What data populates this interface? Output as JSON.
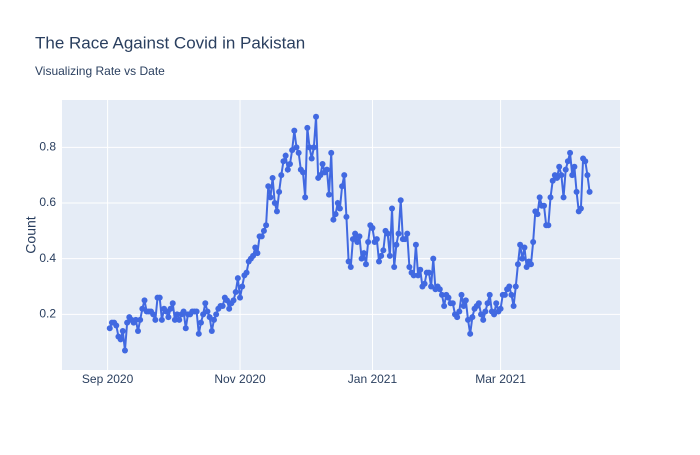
{
  "chart_data": {
    "type": "line",
    "title": "The Race Against Covid in Pakistan",
    "subtitle": "Visualizing Rate vs Date",
    "ylabel": "Count",
    "xlim": [
      "2020-08-11",
      "2021-04-25"
    ],
    "ylim": [
      0,
      0.97
    ],
    "xticks": [
      {
        "value": "2020-09-01",
        "label": "Sep 2020"
      },
      {
        "value": "2020-11-01",
        "label": "Nov 2020"
      },
      {
        "value": "2021-01-01",
        "label": "Jan 2021"
      },
      {
        "value": "2021-03-01",
        "label": "Mar 2021"
      }
    ],
    "yticks": [
      0.2,
      0.4,
      0.6,
      0.8
    ],
    "grid": true,
    "x": [
      "2020-09-02",
      "2020-09-03",
      "2020-09-04",
      "2020-09-05",
      "2020-09-06",
      "2020-09-07",
      "2020-09-08",
      "2020-09-09",
      "2020-09-10",
      "2020-09-11",
      "2020-09-12",
      "2020-09-13",
      "2020-09-14",
      "2020-09-15",
      "2020-09-16",
      "2020-09-17",
      "2020-09-18",
      "2020-09-19",
      "2020-09-20",
      "2020-09-21",
      "2020-09-22",
      "2020-09-23",
      "2020-09-24",
      "2020-09-25",
      "2020-09-26",
      "2020-09-27",
      "2020-09-28",
      "2020-09-29",
      "2020-09-30",
      "2020-10-01",
      "2020-10-02",
      "2020-10-03",
      "2020-10-04",
      "2020-10-05",
      "2020-10-06",
      "2020-10-07",
      "2020-10-08",
      "2020-10-09",
      "2020-10-10",
      "2020-10-11",
      "2020-10-12",
      "2020-10-13",
      "2020-10-14",
      "2020-10-15",
      "2020-10-16",
      "2020-10-17",
      "2020-10-18",
      "2020-10-19",
      "2020-10-20",
      "2020-10-21",
      "2020-10-22",
      "2020-10-23",
      "2020-10-24",
      "2020-10-25",
      "2020-10-26",
      "2020-10-27",
      "2020-10-28",
      "2020-10-29",
      "2020-10-30",
      "2020-10-31",
      "2020-11-01",
      "2020-11-02",
      "2020-11-03",
      "2020-11-04",
      "2020-11-05",
      "2020-11-06",
      "2020-11-07",
      "2020-11-08",
      "2020-11-09",
      "2020-11-10",
      "2020-11-11",
      "2020-11-12",
      "2020-11-13",
      "2020-11-14",
      "2020-11-15",
      "2020-11-16",
      "2020-11-17",
      "2020-11-18",
      "2020-11-19",
      "2020-11-20",
      "2020-11-21",
      "2020-11-22",
      "2020-11-23",
      "2020-11-24",
      "2020-11-25",
      "2020-11-26",
      "2020-11-27",
      "2020-11-28",
      "2020-11-29",
      "2020-11-30",
      "2020-12-01",
      "2020-12-02",
      "2020-12-03",
      "2020-12-04",
      "2020-12-05",
      "2020-12-06",
      "2020-12-07",
      "2020-12-08",
      "2020-12-09",
      "2020-12-10",
      "2020-12-11",
      "2020-12-12",
      "2020-12-13",
      "2020-12-14",
      "2020-12-15",
      "2020-12-16",
      "2020-12-17",
      "2020-12-18",
      "2020-12-19",
      "2020-12-20",
      "2020-12-21",
      "2020-12-22",
      "2020-12-23",
      "2020-12-24",
      "2020-12-25",
      "2020-12-26",
      "2020-12-27",
      "2020-12-28",
      "2020-12-29",
      "2020-12-30",
      "2020-12-31",
      "2021-01-01",
      "2021-01-02",
      "2021-01-03",
      "2021-01-04",
      "2021-01-05",
      "2021-01-06",
      "2021-01-07",
      "2021-01-08",
      "2021-01-09",
      "2021-01-10",
      "2021-01-11",
      "2021-01-12",
      "2021-01-13",
      "2021-01-14",
      "2021-01-15",
      "2021-01-16",
      "2021-01-17",
      "2021-01-18",
      "2021-01-19",
      "2021-01-20",
      "2021-01-21",
      "2021-01-22",
      "2021-01-23",
      "2021-01-24",
      "2021-01-25",
      "2021-01-26",
      "2021-01-27",
      "2021-01-28",
      "2021-01-29",
      "2021-01-30",
      "2021-01-31",
      "2021-02-01",
      "2021-02-02",
      "2021-02-03",
      "2021-02-04",
      "2021-02-05",
      "2021-02-06",
      "2021-02-07",
      "2021-02-08",
      "2021-02-09",
      "2021-02-10",
      "2021-02-11",
      "2021-02-12",
      "2021-02-13",
      "2021-02-14",
      "2021-02-15",
      "2021-02-16",
      "2021-02-17",
      "2021-02-18",
      "2021-02-19",
      "2021-02-20",
      "2021-02-21",
      "2021-02-22",
      "2021-02-23",
      "2021-02-24",
      "2021-02-25",
      "2021-02-26",
      "2021-02-27",
      "2021-02-28",
      "2021-03-01",
      "2021-03-02",
      "2021-03-03",
      "2021-03-04",
      "2021-03-05",
      "2021-03-06",
      "2021-03-07",
      "2021-03-08",
      "2021-03-09",
      "2021-03-10",
      "2021-03-11",
      "2021-03-12",
      "2021-03-13",
      "2021-03-14",
      "2021-03-15",
      "2021-03-16",
      "2021-03-17",
      "2021-03-18",
      "2021-03-19",
      "2021-03-20",
      "2021-03-21",
      "2021-03-22",
      "2021-03-23",
      "2021-03-24",
      "2021-03-25",
      "2021-03-26",
      "2021-03-27",
      "2021-03-28",
      "2021-03-29",
      "2021-03-30",
      "2021-03-31",
      "2021-04-01",
      "2021-04-02",
      "2021-04-03",
      "2021-04-04",
      "2021-04-05",
      "2021-04-06",
      "2021-04-07",
      "2021-04-08",
      "2021-04-09",
      "2021-04-10",
      "2021-04-11"
    ],
    "series": [
      {
        "color": "#4169e1",
        "values": [
          0.15,
          0.17,
          0.17,
          0.16,
          0.12,
          0.11,
          0.14,
          0.07,
          0.17,
          0.19,
          0.18,
          0.17,
          0.18,
          0.14,
          0.18,
          0.22,
          0.25,
          0.21,
          0.21,
          0.21,
          0.2,
          0.18,
          0.26,
          0.26,
          0.18,
          0.22,
          0.21,
          0.19,
          0.22,
          0.24,
          0.18,
          0.2,
          0.18,
          0.2,
          0.21,
          0.15,
          0.2,
          0.2,
          0.21,
          0.21,
          0.21,
          0.13,
          0.17,
          0.2,
          0.24,
          0.21,
          0.19,
          0.14,
          0.18,
          0.2,
          0.22,
          0.23,
          0.23,
          0.26,
          0.25,
          0.22,
          0.24,
          0.25,
          0.28,
          0.33,
          0.26,
          0.3,
          0.34,
          0.35,
          0.39,
          0.4,
          0.41,
          0.44,
          0.42,
          0.48,
          0.48,
          0.5,
          0.52,
          0.66,
          0.62,
          0.69,
          0.6,
          0.57,
          0.64,
          0.7,
          0.75,
          0.77,
          0.72,
          0.74,
          0.79,
          0.86,
          0.8,
          0.78,
          0.72,
          0.71,
          0.62,
          0.87,
          0.8,
          0.76,
          0.8,
          0.91,
          0.69,
          0.7,
          0.74,
          0.71,
          0.72,
          0.63,
          0.78,
          0.54,
          0.56,
          0.6,
          0.58,
          0.66,
          0.7,
          0.55,
          0.39,
          0.37,
          0.47,
          0.49,
          0.46,
          0.48,
          0.4,
          0.42,
          0.38,
          0.46,
          0.52,
          0.51,
          0.46,
          0.47,
          0.39,
          0.41,
          0.43,
          0.5,
          0.49,
          0.41,
          0.58,
          0.37,
          0.45,
          0.49,
          0.61,
          0.47,
          0.47,
          0.49,
          0.37,
          0.35,
          0.34,
          0.45,
          0.34,
          0.36,
          0.3,
          0.31,
          0.35,
          0.35,
          0.3,
          0.4,
          0.29,
          0.3,
          0.29,
          0.27,
          0.23,
          0.27,
          0.26,
          0.24,
          0.24,
          0.2,
          0.19,
          0.21,
          0.27,
          0.23,
          0.25,
          0.18,
          0.13,
          0.19,
          0.22,
          0.23,
          0.24,
          0.2,
          0.18,
          0.21,
          0.24,
          0.27,
          0.21,
          0.2,
          0.24,
          0.21,
          0.22,
          0.27,
          0.27,
          0.29,
          0.3,
          0.27,
          0.23,
          0.3,
          0.38,
          0.45,
          0.4,
          0.44,
          0.37,
          0.39,
          0.38,
          0.46,
          0.57,
          0.56,
          0.62,
          0.59,
          0.59,
          0.52,
          0.52,
          0.62,
          0.68,
          0.7,
          0.69,
          0.73,
          0.7,
          0.62,
          0.72,
          0.75,
          0.78,
          0.7,
          0.73,
          0.64,
          0.57,
          0.58,
          0.76,
          0.75,
          0.7,
          0.64
        ]
      }
    ]
  }
}
